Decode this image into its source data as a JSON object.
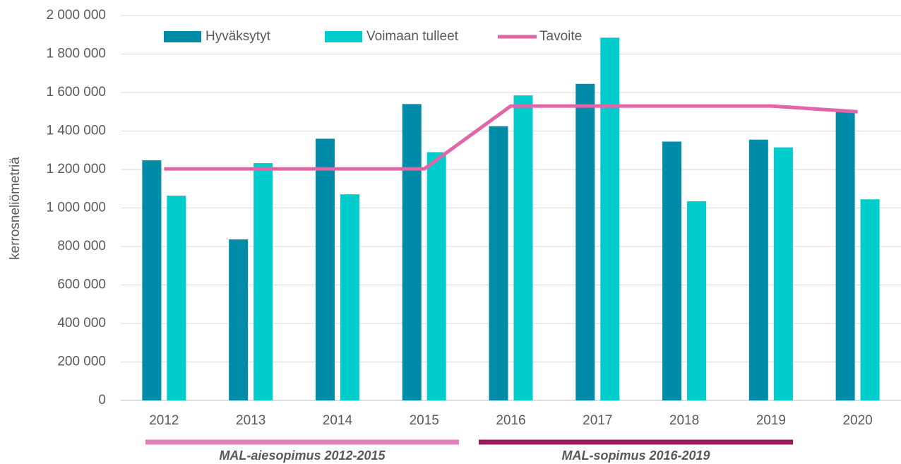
{
  "chart_data": {
    "type": "bar",
    "y_label": "kerrosneliömetriä",
    "categories": [
      "2012",
      "2013",
      "2014",
      "2015",
      "2016",
      "2017",
      "2018",
      "2019",
      "2020"
    ],
    "series": [
      {
        "name": "Hyväksytyt",
        "type": "bar",
        "color": "#008ca8",
        "values": [
          1248000,
          837000,
          1360000,
          1540000,
          1425000,
          1645000,
          1345000,
          1355000,
          1500000
        ]
      },
      {
        "name": "Voimaan tulleet",
        "type": "bar",
        "color": "#00cccc",
        "values": [
          1064000,
          1233000,
          1071000,
          1290000,
          1585000,
          1885000,
          1035000,
          1315000,
          1045000
        ]
      },
      {
        "name": "Tavoite",
        "type": "line",
        "color": "#e066a8",
        "values": [
          1203000,
          1203000,
          1203000,
          1203000,
          1530000,
          1530000,
          1530000,
          1530000,
          1500000
        ]
      }
    ],
    "ylim": [
      0,
      2000000
    ],
    "yticks": [
      0,
      {
        "value": 200000,
        "label": "200 000"
      },
      {
        "value": 400000,
        "label": "400 000"
      },
      {
        "value": 600000,
        "label": "600 000"
      },
      {
        "value": 800000,
        "label": "800 000"
      },
      {
        "value": 1000000,
        "label": "1 000 000"
      },
      {
        "value": 1200000,
        "label": "1 200 000"
      },
      {
        "value": 1400000,
        "label": "1 400 000"
      },
      {
        "value": 1600000,
        "label": "1 600 000"
      },
      {
        "value": 1800000,
        "label": "1 800 000"
      },
      {
        "value": 2000000,
        "label": "2 000 000"
      }
    ],
    "grid": true,
    "legend": "top",
    "annotations": [
      {
        "text": "MAL-aiesopimus 2012-2015",
        "color": "#e57fbf"
      },
      {
        "text": "MAL-sopimus 2016-2019",
        "color": "#9c1a5c"
      }
    ]
  }
}
